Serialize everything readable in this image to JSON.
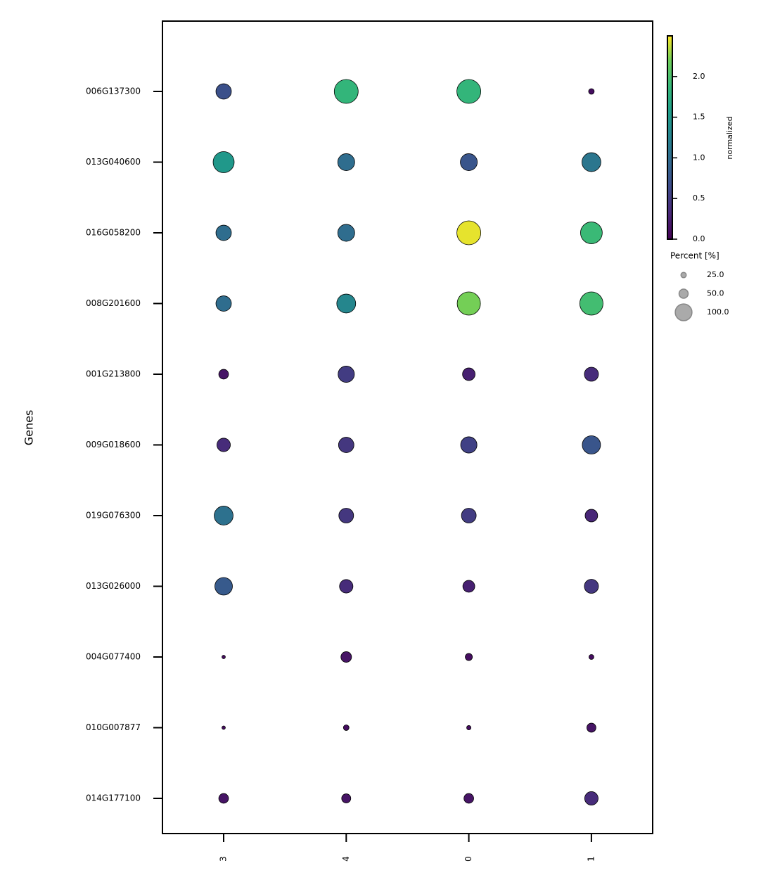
{
  "chart_data": {
    "type": "dotplot",
    "ylabel": "Genes",
    "x_categories": [
      "3",
      "4",
      "0",
      "1"
    ],
    "y_categories": [
      "006G137300",
      "013G040600",
      "016G058200",
      "008G201600",
      "001G213800",
      "009G018600",
      "019G076300",
      "013G026000",
      "004G077400",
      "010G007877",
      "014G177100"
    ],
    "values": [
      [
        0.7,
        1.85,
        1.85,
        0.1
      ],
      [
        1.5,
        1.0,
        0.75,
        1.1
      ],
      [
        1.0,
        1.0,
        2.45,
        1.9
      ],
      [
        1.0,
        1.3,
        2.2,
        1.95
      ],
      [
        0.15,
        0.5,
        0.25,
        0.35
      ],
      [
        0.35,
        0.45,
        0.55,
        0.75
      ],
      [
        1.05,
        0.45,
        0.5,
        0.3
      ],
      [
        0.8,
        0.35,
        0.25,
        0.45
      ],
      [
        0.1,
        0.15,
        0.1,
        0.1
      ],
      [
        0.1,
        0.1,
        0.1,
        0.15
      ],
      [
        0.15,
        0.15,
        0.15,
        0.35
      ]
    ],
    "sizes": [
      [
        61,
        100,
        100,
        16
      ],
      [
        87,
        68,
        68,
        77
      ],
      [
        61,
        68,
        100,
        90
      ],
      [
        61,
        77,
        97,
        97
      ],
      [
        35,
        65,
        48,
        55
      ],
      [
        52,
        61,
        65,
        74
      ],
      [
        77,
        58,
        58,
        48
      ],
      [
        71,
        52,
        45,
        55
      ],
      [
        6,
        39,
        23,
        13
      ],
      [
        6,
        16,
        10,
        32
      ],
      [
        35,
        32,
        35,
        52
      ]
    ],
    "colormap": "viridis",
    "colorbar": {
      "label": "normalized",
      "lim": [
        0,
        2.5
      ],
      "ticks": [
        {
          "value": 0,
          "label": "0.0"
        },
        {
          "value": 0.5,
          "label": "0.5"
        },
        {
          "value": 1,
          "label": "1.0"
        },
        {
          "value": 1.5,
          "label": "1.5"
        },
        {
          "value": 2,
          "label": "2.0"
        }
      ]
    },
    "size_legend": {
      "title": "Percent [%]",
      "ticks": [
        {
          "value": 25,
          "label": "25.0"
        },
        {
          "value": 50,
          "label": "50.0"
        },
        {
          "value": 100,
          "label": "100.0"
        }
      ]
    }
  }
}
